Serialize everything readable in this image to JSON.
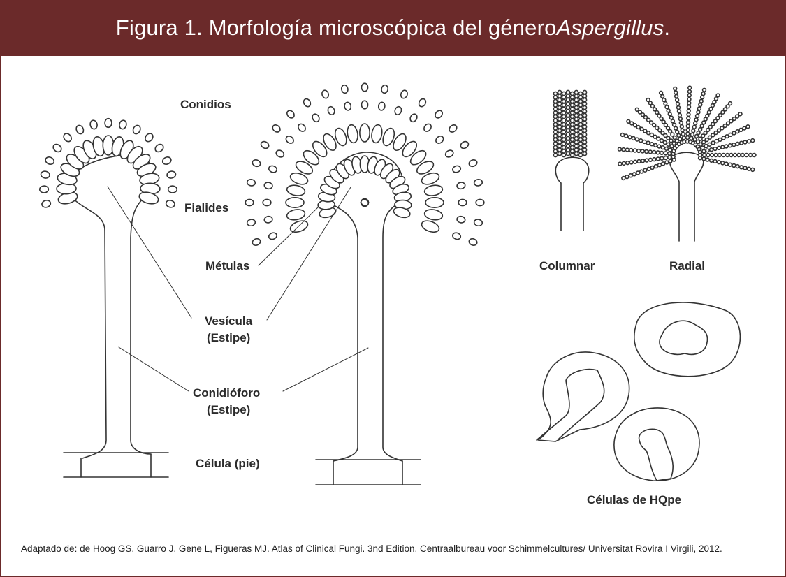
{
  "header": {
    "title_main": "Figura 1. Morfología microscópica del género ",
    "title_italic": "Aspergillus",
    "title_end": "."
  },
  "labels": {
    "conidios": "Conidios",
    "fialides": "Fialides",
    "metulas": "Métulas",
    "vesicula": "Vesícula",
    "vesicula_sub": "(Estipe)",
    "conidioforo": "Conidióforo",
    "conidioforo_sub": "(Estipe)",
    "celula": "Célula (pie)",
    "columnar": "Columnar",
    "radial": "Radial",
    "hulle": "Células de HQpe"
  },
  "footer": {
    "citation": "Adaptado de: de Hoog GS, Guarro J, Gene L, Figueras MJ. Atlas of Clinical Fungi. 3nd Edition. Centraalbureau voor Schimmelcultures/ Universitat Rovira I Virgili, 2012."
  },
  "colors": {
    "header_bg": "#6b2a2a",
    "stroke": "#333333"
  }
}
